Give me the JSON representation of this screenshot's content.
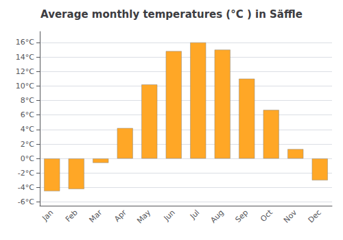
{
  "chart_data": {
    "type": "bar",
    "title": "Average monthly temperatures (°C ) in Säffle",
    "categories": [
      "Jan",
      "Feb",
      "Mar",
      "Apr",
      "May",
      "Jun",
      "Jul",
      "Aug",
      "Sep",
      "Oct",
      "Nov",
      "Dec"
    ],
    "values": [
      -4.5,
      -4.2,
      -0.6,
      4.2,
      10.2,
      14.8,
      16.0,
      15.0,
      11.0,
      6.7,
      1.3,
      -3.0
    ],
    "color": "#FFA726",
    "ylim": [
      -6.5,
      17.5
    ],
    "yticks": [
      {
        "value": -6,
        "label": "-6°C"
      },
      {
        "value": -4,
        "label": "-4°C"
      },
      {
        "value": -2,
        "label": "-2°C"
      },
      {
        "value": 0,
        "label": "0°C"
      },
      {
        "value": 2,
        "label": "2°C"
      },
      {
        "value": 4,
        "label": "4°C"
      },
      {
        "value": 6,
        "label": "6°C"
      },
      {
        "value": 8,
        "label": "8°C"
      },
      {
        "value": 10,
        "label": "10°C"
      },
      {
        "value": 12,
        "label": "12°C"
      },
      {
        "value": 14,
        "label": "14°C"
      },
      {
        "value": 16,
        "label": "16°C"
      }
    ],
    "grid": true
  }
}
